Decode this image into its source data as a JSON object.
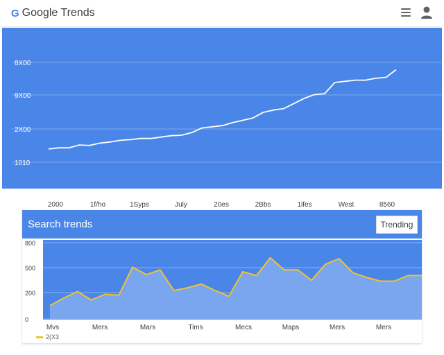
{
  "header": {
    "logo_mark": "G",
    "title": "Google Trends",
    "icons": {
      "menu": "hamburger-menu-icon",
      "account": "account-icon"
    }
  },
  "colors": {
    "hero_bg": "#4a86e8",
    "hero_line": "#ffffff",
    "card_header_bg": "#4a86e8",
    "card_area": "#7aa5ef",
    "card_line": "#f1c232"
  },
  "hero_chart": {
    "y_tick_labels": [
      "8X00",
      "9X00",
      "2X00",
      "1010"
    ],
    "x_tick_labels": [
      "2000",
      "1f/ho",
      "1Syps",
      "July",
      "20es",
      "2Bbs",
      "1ifes",
      "West",
      "8560"
    ],
    "values": [
      1.05,
      1.1,
      1.1,
      1.22,
      1.2,
      1.3,
      1.35,
      1.42,
      1.45,
      1.5,
      1.5,
      1.56,
      1.62,
      1.64,
      1.75,
      1.95,
      2.0,
      2.05,
      2.18,
      2.28,
      2.38,
      2.62,
      2.72,
      2.78,
      3.0,
      3.22,
      3.38,
      3.42,
      3.9,
      3.95,
      4.0,
      4.0,
      4.08,
      4.12,
      4.45
    ],
    "y_range": [
      0.6,
      5.0
    ]
  },
  "search_trends": {
    "title": "Search trends",
    "button_label": "Trending",
    "y_tick_labels": [
      "800",
      "500",
      "200",
      "0"
    ],
    "x_tick_labels": [
      "Mvs",
      "Mers",
      "Mars",
      "Tims",
      "Mecs",
      "Maps",
      "Mers",
      "Mers"
    ],
    "legend_label": "2(X3",
    "values": [
      150,
      230,
      300,
      210,
      270,
      260,
      560,
      480,
      530,
      310,
      340,
      380,
      310,
      250,
      510,
      470,
      660,
      530,
      530,
      420,
      590,
      650,
      500,
      450,
      410,
      410,
      470,
      470
    ],
    "y_range": [
      0,
      850
    ]
  }
}
